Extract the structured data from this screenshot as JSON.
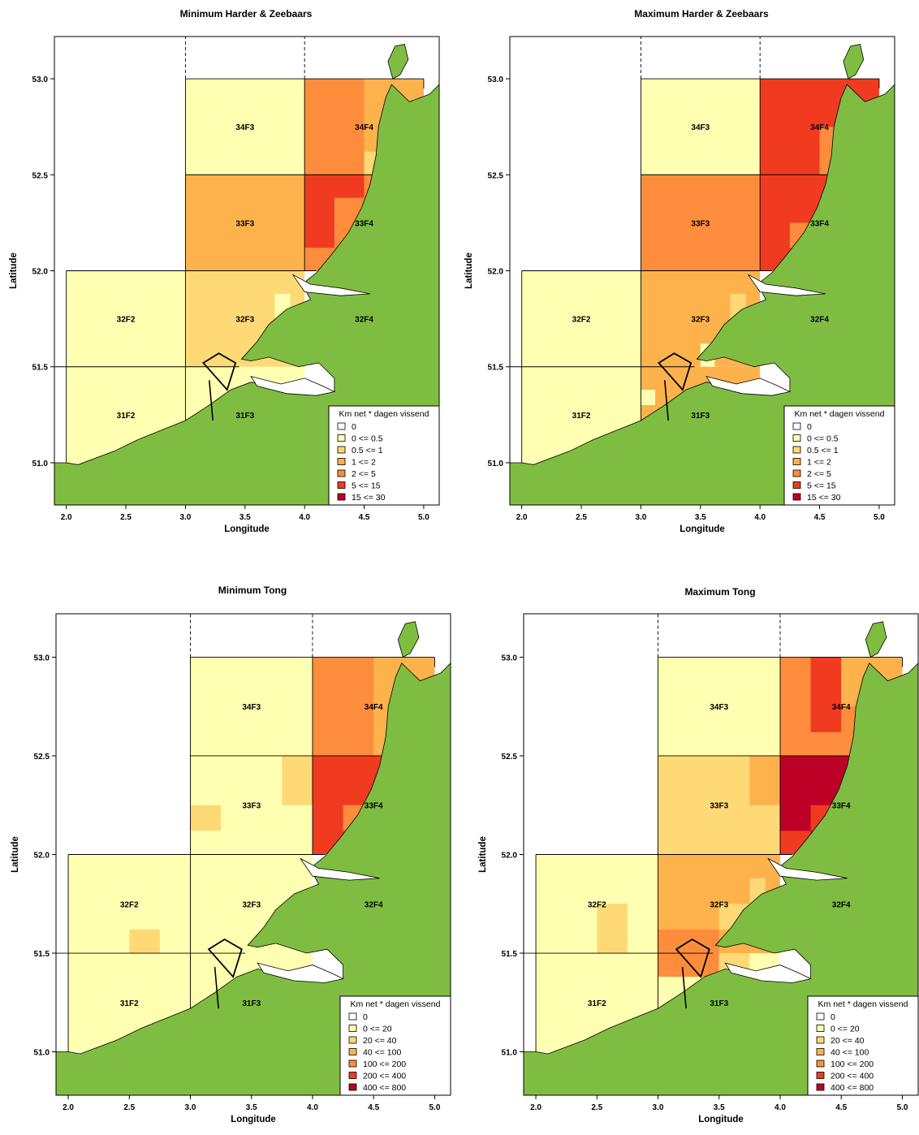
{
  "axis": {
    "xlabel": "Longitude",
    "ylabel": "Latitude",
    "xlim": [
      1.9,
      5.13
    ],
    "ylim": [
      50.78,
      53.22
    ],
    "xticks": [
      "2.0",
      "2.5",
      "3.0",
      "3.5",
      "4.0",
      "4.5",
      "5.0"
    ],
    "yticks": [
      "51.0",
      "51.5",
      "52.0",
      "52.5",
      "53.0"
    ]
  },
  "colors": {
    "c0": "#ffffff",
    "c1": "#ffffb2",
    "c2": "#fed976",
    "c3": "#feb24c",
    "c4": "#fd8d3c",
    "c5": "#f03b20",
    "c6": "#bd0026",
    "land": "#7fbd42"
  },
  "legends": {
    "harder": {
      "title": "Km net * dagen vissend",
      "items": [
        "0",
        "0 <= 0.5",
        "0.5 <= 1",
        "1 <= 2",
        "2 <= 5",
        "5 <= 15",
        "15 <= 30"
      ]
    },
    "tong": {
      "title": "Km net * dagen vissend",
      "items": [
        "0",
        "0 <= 20",
        "20 <= 40",
        "40 <= 100",
        "100 <= 200",
        "200 <= 400",
        "400 <= 800"
      ]
    }
  },
  "rectangles": [
    {
      "label": "34F3",
      "lon": 3.5,
      "lat": 52.75
    },
    {
      "label": "34F4",
      "lon": 4.5,
      "lat": 52.75
    },
    {
      "label": "33F3",
      "lon": 3.5,
      "lat": 52.25
    },
    {
      "label": "33F4",
      "lon": 4.5,
      "lat": 52.25
    },
    {
      "label": "32F2",
      "lon": 2.5,
      "lat": 51.75
    },
    {
      "label": "32F3",
      "lon": 3.5,
      "lat": 51.75
    },
    {
      "label": "32F4",
      "lon": 4.5,
      "lat": 51.75
    },
    {
      "label": "31F2",
      "lon": 2.5,
      "lat": 51.25
    },
    {
      "label": "31F3",
      "lon": 3.5,
      "lat": 51.25
    }
  ],
  "panels": [
    {
      "title": "Minimum Harder & Zeebaars",
      "legend": "harder",
      "base": [
        {
          "x0": 3,
          "x1": 4,
          "y0": 52.5,
          "y1": 53,
          "c": 1
        },
        {
          "x0": 4,
          "x1": 5,
          "y0": 52.5,
          "y1": 53,
          "c": 4
        },
        {
          "x0": 3,
          "x1": 4,
          "y0": 52,
          "y1": 52.5,
          "c": 3
        },
        {
          "x0": 4,
          "x1": 5,
          "y0": 52,
          "y1": 52.5,
          "c": 4
        },
        {
          "x0": 2,
          "x1": 3,
          "y0": 51.5,
          "y1": 52,
          "c": 1
        },
        {
          "x0": 3,
          "x1": 4,
          "y0": 51.5,
          "y1": 52,
          "c": 2
        },
        {
          "x0": 2,
          "x1": 3,
          "y0": 51,
          "y1": 51.5,
          "c": 1
        },
        {
          "x0": 3,
          "x1": 4,
          "y0": 51,
          "y1": 51.5,
          "c": 1
        }
      ],
      "cells": [
        {
          "x0": 4.5,
          "x1": 5,
          "y0": 52.5,
          "y1": 53,
          "c": 3
        },
        {
          "x0": 4.5,
          "x1": 4.6,
          "y0": 52.5,
          "y1": 52.62,
          "c": 2
        },
        {
          "x0": 4,
          "x1": 4.5,
          "y0": 52.12,
          "y1": 52.5,
          "c": 5
        },
        {
          "x0": 4.25,
          "x1": 4.5,
          "y0": 52.12,
          "y1": 52.38,
          "c": 4
        },
        {
          "x0": 3.75,
          "x1": 3.88,
          "y0": 51.75,
          "y1": 51.88,
          "c": 1
        }
      ]
    },
    {
      "title": "Maximum Harder & Zeebaars",
      "legend": "harder",
      "base": [
        {
          "x0": 3,
          "x1": 4,
          "y0": 52.5,
          "y1": 53,
          "c": 1
        },
        {
          "x0": 4,
          "x1": 5,
          "y0": 52.5,
          "y1": 53,
          "c": 5
        },
        {
          "x0": 3,
          "x1": 4,
          "y0": 52,
          "y1": 52.5,
          "c": 4
        },
        {
          "x0": 4,
          "x1": 5,
          "y0": 52,
          "y1": 52.5,
          "c": 5
        },
        {
          "x0": 2,
          "x1": 3,
          "y0": 51.5,
          "y1": 52,
          "c": 1
        },
        {
          "x0": 3,
          "x1": 4,
          "y0": 51.5,
          "y1": 52,
          "c": 3
        },
        {
          "x0": 2,
          "x1": 3,
          "y0": 51,
          "y1": 51.5,
          "c": 1
        },
        {
          "x0": 3,
          "x1": 4,
          "y0": 51,
          "y1": 51.5,
          "c": 3
        }
      ],
      "cells": [
        {
          "x0": 4.5,
          "x1": 4.62,
          "y0": 52.5,
          "y1": 52.75,
          "c": 4
        },
        {
          "x0": 4.25,
          "x1": 4.5,
          "y0": 52.12,
          "y1": 52.25,
          "c": 4
        },
        {
          "x0": 3.75,
          "x1": 3.88,
          "y0": 51.75,
          "y1": 51.88,
          "c": 2
        },
        {
          "x0": 3.5,
          "x1": 3.62,
          "y0": 51.5,
          "y1": 51.62,
          "c": 1
        },
        {
          "x0": 3,
          "x1": 3.12,
          "y0": 51.3,
          "y1": 51.38,
          "c": 1
        }
      ]
    },
    {
      "title": "Minimum Tong",
      "legend": "tong",
      "base": [
        {
          "x0": 3,
          "x1": 4,
          "y0": 52.5,
          "y1": 53,
          "c": 1
        },
        {
          "x0": 4,
          "x1": 5,
          "y0": 52.5,
          "y1": 53,
          "c": 4
        },
        {
          "x0": 3,
          "x1": 4,
          "y0": 52,
          "y1": 52.5,
          "c": 1
        },
        {
          "x0": 4,
          "x1": 5,
          "y0": 52,
          "y1": 52.5,
          "c": 5
        },
        {
          "x0": 2,
          "x1": 3,
          "y0": 51.5,
          "y1": 52,
          "c": 1
        },
        {
          "x0": 3,
          "x1": 4,
          "y0": 51.5,
          "y1": 52,
          "c": 1
        },
        {
          "x0": 2,
          "x1": 3,
          "y0": 51,
          "y1": 51.5,
          "c": 1
        },
        {
          "x0": 3,
          "x1": 4,
          "y0": 51,
          "y1": 51.5,
          "c": 1
        }
      ],
      "cells": [
        {
          "x0": 4.5,
          "x1": 5,
          "y0": 52.5,
          "y1": 53,
          "c": 3
        },
        {
          "x0": 4.25,
          "x1": 4.5,
          "y0": 52.12,
          "y1": 52.25,
          "c": 4
        },
        {
          "x0": 3.75,
          "x1": 4,
          "y0": 52.25,
          "y1": 52.5,
          "c": 2
        },
        {
          "x0": 3,
          "x1": 3.25,
          "y0": 52.12,
          "y1": 52.25,
          "c": 2
        },
        {
          "x0": 2.5,
          "x1": 2.75,
          "y0": 51.5,
          "y1": 51.62,
          "c": 2
        }
      ]
    },
    {
      "title": "Maximum Tong",
      "legend": "tong",
      "base": [
        {
          "x0": 3,
          "x1": 4,
          "y0": 52.5,
          "y1": 53,
          "c": 1
        },
        {
          "x0": 4,
          "x1": 5,
          "y0": 52.5,
          "y1": 53,
          "c": 4
        },
        {
          "x0": 3,
          "x1": 4,
          "y0": 52,
          "y1": 52.5,
          "c": 2
        },
        {
          "x0": 4,
          "x1": 5,
          "y0": 52,
          "y1": 52.5,
          "c": 6
        },
        {
          "x0": 2,
          "x1": 3,
          "y0": 51.5,
          "y1": 52,
          "c": 1
        },
        {
          "x0": 3,
          "x1": 4,
          "y0": 51.5,
          "y1": 52,
          "c": 3
        },
        {
          "x0": 2,
          "x1": 3,
          "y0": 51,
          "y1": 51.5,
          "c": 1
        },
        {
          "x0": 3,
          "x1": 4,
          "y0": 51,
          "y1": 51.5,
          "c": 1
        }
      ],
      "cells": [
        {
          "x0": 4.25,
          "x1": 4.5,
          "y0": 52.62,
          "y1": 53,
          "c": 5
        },
        {
          "x0": 4.5,
          "x1": 5,
          "y0": 52.75,
          "y1": 53,
          "c": 3
        },
        {
          "x0": 3.75,
          "x1": 4,
          "y0": 52.25,
          "y1": 52.5,
          "c": 3
        },
        {
          "x0": 4,
          "x1": 4.25,
          "y0": 52,
          "y1": 52.12,
          "c": 5
        },
        {
          "x0": 4.25,
          "x1": 4.5,
          "y0": 52.12,
          "y1": 52.25,
          "c": 5
        },
        {
          "x0": 2.5,
          "x1": 2.75,
          "y0": 51.5,
          "y1": 51.75,
          "c": 2
        },
        {
          "x0": 3,
          "x1": 3.5,
          "y0": 51.38,
          "y1": 51.62,
          "c": 4
        },
        {
          "x0": 3.75,
          "x1": 3.88,
          "y0": 51.75,
          "y1": 51.88,
          "c": 2
        },
        {
          "x0": 3.5,
          "x1": 3.75,
          "y0": 51.62,
          "y1": 51.75,
          "c": 2
        },
        {
          "x0": 3.5,
          "x1": 3.75,
          "y0": 51.38,
          "y1": 51.5,
          "c": 2
        },
        {
          "x0": 3,
          "x1": 3.12,
          "y0": 51.3,
          "y1": 51.38,
          "c": 1
        }
      ]
    }
  ]
}
